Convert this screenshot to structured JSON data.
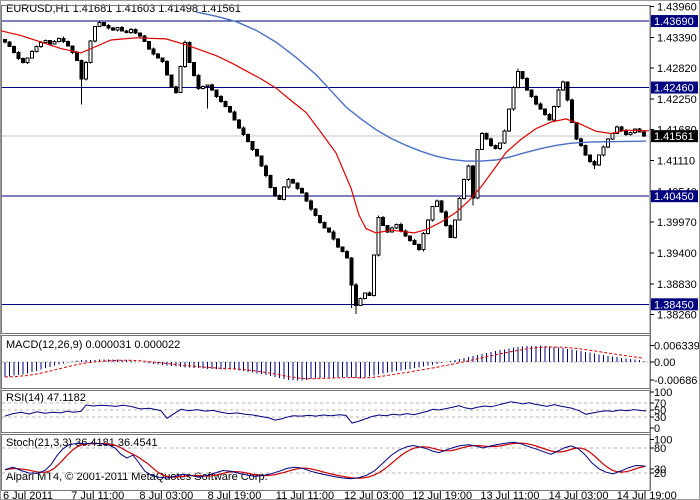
{
  "window": {
    "title": "EURUSD,H1  1.41681 1.41603 1.41498 1.41561"
  },
  "panels": {
    "macd": {
      "label": "MACD(12,26,9) 0.000031 0.000022",
      "axis_ticks": [
        [
          "0.006339",
          0.006339
        ],
        [
          "0.00",
          0
        ],
        [
          "-0.00686",
          -0.00686
        ]
      ]
    },
    "rsi": {
      "label": "RSI(14) 47.1182",
      "axis_ticks": [
        [
          "100",
          100
        ],
        [
          "70",
          70
        ],
        [
          "50",
          50
        ],
        [
          "30",
          30
        ],
        [
          "0",
          0
        ]
      ],
      "levels": [
        70,
        50,
        30
      ]
    },
    "stoch": {
      "label": "Stoch(21,3,3) 36.4181 36.4541",
      "axis_ticks": [
        [
          "100",
          100
        ],
        [
          "80",
          80
        ],
        [
          "30",
          30
        ],
        [
          "20",
          20
        ]
      ],
      "levels": [
        80,
        20
      ]
    }
  },
  "footer": {
    "copyright": "Alpari MT4, © 2001-2011 MetaQuotes Software Corp."
  },
  "time_axis": [
    "6 Jul 2011",
    "7 Jul 11:00",
    "8 Jul 03:00",
    "8 Jul 19:00",
    "11 Jul 11:00",
    "12 Jul 03:00",
    "12 Jul 19:00",
    "13 Jul 11:00",
    "14 Jul 03:00",
    "14 Jul 19:00"
  ],
  "price_axis": {
    "ticks": [
      "1.43960",
      "1.43390",
      "1.42820",
      "1.42250",
      "1.41680",
      "1.41110",
      "1.40540",
      "1.39970",
      "1.39400",
      "1.38830",
      "1.38260"
    ],
    "hlines": [
      "1.43690",
      "1.42460",
      "1.40450",
      "1.38450"
    ],
    "current": "1.41561"
  },
  "chart_data": {
    "type": "candlestick",
    "symbol": "EURUSD",
    "timeframe": "H1",
    "title": "EURUSD,H1  1.41681 1.41603 1.41498 1.41561",
    "ylim": [
      1.3807,
      1.4395
    ],
    "colors": {
      "navy": "#000080",
      "ma_red": "#e00000",
      "ma_blue": "#4a6fc4",
      "macd_bar": "#000080",
      "macd_signal": "#e00000",
      "rsi": "#000080",
      "stoch_k": "#000080",
      "stoch_d": "#cc0000",
      "level_dash": "#b4b4b4",
      "current_line": "#c6c6c6",
      "current_box": "#000000",
      "hline_box": "#000080",
      "border": "#777777",
      "text": "#000000",
      "bull": "#ffffff",
      "bear": "#000000"
    },
    "closes": [
      1.433,
      1.4322,
      1.4311,
      1.43,
      1.4292,
      1.4301,
      1.4313,
      1.4322,
      1.4329,
      1.4333,
      1.4327,
      1.4331,
      1.4337,
      1.4331,
      1.4323,
      1.4311,
      1.4296,
      1.4262,
      1.4292,
      1.4332,
      1.4359,
      1.4366,
      1.4361,
      1.4356,
      1.4352,
      1.4357,
      1.4351,
      1.4348,
      1.4353,
      1.4347,
      1.4341,
      1.4331,
      1.4317,
      1.4308,
      1.4301,
      1.4294,
      1.4269,
      1.4247,
      1.4237,
      1.4285,
      1.4329,
      1.4292,
      1.4268,
      1.4244,
      1.4248,
      1.4251,
      1.4241,
      1.4229,
      1.422,
      1.4211,
      1.4201,
      1.4186,
      1.4171,
      1.4159,
      1.4146,
      1.4131,
      1.4119,
      1.4101,
      1.4083,
      1.4061,
      1.4046,
      1.4039,
      1.4062,
      1.4076,
      1.4069,
      1.4059,
      1.4051,
      1.4036,
      1.4021,
      1.4009,
      1.3996,
      1.3986,
      1.3979,
      1.3966,
      1.3951,
      1.3943,
      1.3931,
      1.3881,
      1.3843,
      1.3856,
      1.3866,
      1.3861,
      1.3936,
      1.4006,
      1.3991,
      1.3979,
      1.3986,
      1.3993,
      1.3981,
      1.3971,
      1.3963,
      1.3956,
      1.3946,
      1.3976,
      1.4001,
      1.4026,
      1.4036,
      1.4016,
      1.3991,
      1.3969,
      1.4001,
      1.4041,
      1.4076,
      1.4101,
      1.4042,
      1.4131,
      1.4161,
      1.4151,
      1.4139,
      1.4133,
      1.4143,
      1.4166,
      1.4206,
      1.4246,
      1.4276,
      1.4263,
      1.4241,
      1.4229,
      1.4216,
      1.4206,
      1.4196,
      1.4186,
      1.4211,
      1.4241,
      1.4256,
      1.4223,
      1.4181,
      1.4151,
      1.4139,
      1.4121,
      1.4109,
      1.4103,
      1.4121,
      1.4136,
      1.4151,
      1.4161,
      1.4173,
      1.4166,
      1.4159,
      1.4163,
      1.4169,
      1.4164,
      1.41561
    ],
    "wick_overrides": {
      "17": {
        "lo": 1.4215
      },
      "21": {
        "hi": 1.4368
      },
      "40": {
        "hi": 1.4333
      },
      "45": {
        "lo": 1.4207
      },
      "77": {
        "lo": 1.3838
      },
      "78": {
        "lo": 1.3827
      },
      "104": {
        "lo": 1.4028
      },
      "114": {
        "hi": 1.4281
      },
      "124": {
        "hi": 1.4259
      },
      "131": {
        "lo": 1.4095
      }
    },
    "ma_blue": [
      [
        195,
        1.4386
      ],
      [
        215,
        1.4378
      ],
      [
        235,
        1.4368
      ],
      [
        255,
        1.4352
      ],
      [
        275,
        1.433
      ],
      [
        295,
        1.4302
      ],
      [
        315,
        1.427
      ],
      [
        330,
        1.424
      ],
      [
        345,
        1.421
      ],
      [
        360,
        1.4188
      ],
      [
        375,
        1.4168
      ],
      [
        390,
        1.4152
      ],
      [
        405,
        1.4139
      ],
      [
        420,
        1.4128
      ],
      [
        435,
        1.4119
      ],
      [
        450,
        1.4113
      ],
      [
        465,
        1.411
      ],
      [
        480,
        1.411
      ],
      [
        495,
        1.4112
      ],
      [
        510,
        1.4118
      ],
      [
        525,
        1.4126
      ],
      [
        540,
        1.4133
      ],
      [
        555,
        1.4139
      ],
      [
        570,
        1.4143
      ],
      [
        590,
        1.4145
      ],
      [
        615,
        1.4146
      ],
      [
        645,
        1.4147
      ]
    ],
    "ma_red": [
      [
        0,
        1.4351
      ],
      [
        20,
        1.4342
      ],
      [
        40,
        1.433
      ],
      [
        60,
        1.4318
      ],
      [
        80,
        1.431
      ],
      [
        95,
        1.4322
      ],
      [
        110,
        1.4334
      ],
      [
        135,
        1.4338
      ],
      [
        165,
        1.4336
      ],
      [
        185,
        1.4325
      ],
      [
        200,
        1.4315
      ],
      [
        215,
        1.4305
      ],
      [
        230,
        1.4292
      ],
      [
        245,
        1.4277
      ],
      [
        260,
        1.4262
      ],
      [
        275,
        1.4245
      ],
      [
        290,
        1.4222
      ],
      [
        305,
        1.42
      ],
      [
        320,
        1.4163
      ],
      [
        335,
        1.4125
      ],
      [
        350,
        1.406
      ],
      [
        358,
        1.401
      ],
      [
        365,
        1.3985
      ],
      [
        375,
        1.3977
      ],
      [
        390,
        1.3982
      ],
      [
        400,
        1.398
      ],
      [
        413,
        1.3977
      ],
      [
        425,
        1.3983
      ],
      [
        440,
        1.3997
      ],
      [
        455,
        1.4015
      ],
      [
        467,
        1.4035
      ],
      [
        480,
        1.4062
      ],
      [
        495,
        1.41
      ],
      [
        505,
        1.4126
      ],
      [
        520,
        1.415
      ],
      [
        535,
        1.417
      ],
      [
        550,
        1.4182
      ],
      [
        565,
        1.4188
      ],
      [
        580,
        1.4178
      ],
      [
        595,
        1.4165
      ],
      [
        610,
        1.4161
      ],
      [
        625,
        1.4167
      ],
      [
        648,
        1.4166
      ]
    ],
    "macd_line": [
      [
        0,
        -0.006
      ],
      [
        25,
        -0.0046
      ],
      [
        55,
        -0.0012
      ],
      [
        75,
        0.0006
      ],
      [
        105,
        0.001
      ],
      [
        125,
        0.0008
      ],
      [
        150,
        -0.0006
      ],
      [
        175,
        -0.0018
      ],
      [
        205,
        -0.0026
      ],
      [
        235,
        -0.003
      ],
      [
        262,
        -0.0048
      ],
      [
        285,
        -0.0068
      ],
      [
        300,
        -0.0072
      ],
      [
        320,
        -0.006
      ],
      [
        345,
        -0.0058
      ],
      [
        360,
        -0.0064
      ],
      [
        385,
        -0.0042
      ],
      [
        410,
        -0.0026
      ],
      [
        430,
        -0.0012
      ],
      [
        450,
        0.0004
      ],
      [
        470,
        0.0022
      ],
      [
        495,
        0.0043
      ],
      [
        520,
        0.006
      ],
      [
        540,
        0.0063
      ],
      [
        560,
        0.0055
      ],
      [
        580,
        0.0042
      ],
      [
        600,
        0.0028
      ],
      [
        620,
        0.0016
      ],
      [
        638,
        0.0008
      ],
      [
        645,
        0.0003
      ]
    ],
    "rsi_line": [
      [
        4,
        33
      ],
      [
        12,
        40
      ],
      [
        20,
        44
      ],
      [
        28,
        39
      ],
      [
        36,
        45
      ],
      [
        44,
        41
      ],
      [
        52,
        44
      ],
      [
        60,
        42
      ],
      [
        66,
        47
      ],
      [
        72,
        44
      ],
      [
        80,
        46
      ],
      [
        85,
        64
      ],
      [
        92,
        61
      ],
      [
        100,
        63
      ],
      [
        108,
        62
      ],
      [
        115,
        60
      ],
      [
        122,
        63
      ],
      [
        130,
        60
      ],
      [
        139,
        53
      ],
      [
        148,
        55
      ],
      [
        155,
        51
      ],
      [
        160,
        48
      ],
      [
        166,
        27
      ],
      [
        172,
        38
      ],
      [
        180,
        52
      ],
      [
        188,
        48
      ],
      [
        196,
        51
      ],
      [
        204,
        47
      ],
      [
        212,
        49
      ],
      [
        220,
        44
      ],
      [
        228,
        40
      ],
      [
        236,
        42
      ],
      [
        244,
        38
      ],
      [
        252,
        36
      ],
      [
        260,
        32
      ],
      [
        268,
        28
      ],
      [
        274,
        22
      ],
      [
        280,
        25
      ],
      [
        286,
        30
      ],
      [
        292,
        34
      ],
      [
        300,
        33
      ],
      [
        308,
        35
      ],
      [
        315,
        33
      ],
      [
        322,
        36
      ],
      [
        330,
        34
      ],
      [
        338,
        37
      ],
      [
        345,
        35
      ],
      [
        351,
        14
      ],
      [
        357,
        18
      ],
      [
        364,
        25
      ],
      [
        371,
        32
      ],
      [
        378,
        36
      ],
      [
        385,
        34
      ],
      [
        392,
        38
      ],
      [
        399,
        36
      ],
      [
        406,
        40
      ],
      [
        413,
        37
      ],
      [
        420,
        42
      ],
      [
        427,
        47
      ],
      [
        432,
        52
      ],
      [
        438,
        50
      ],
      [
        445,
        54
      ],
      [
        452,
        58
      ],
      [
        458,
        62
      ],
      [
        464,
        56
      ],
      [
        470,
        53
      ],
      [
        477,
        58
      ],
      [
        484,
        61
      ],
      [
        490,
        59
      ],
      [
        496,
        63
      ],
      [
        503,
        68
      ],
      [
        510,
        73
      ],
      [
        516,
        70
      ],
      [
        522,
        67
      ],
      [
        528,
        70
      ],
      [
        534,
        66
      ],
      [
        540,
        63
      ],
      [
        546,
        60
      ],
      [
        553,
        65
      ],
      [
        559,
        61
      ],
      [
        565,
        58
      ],
      [
        571,
        55
      ],
      [
        578,
        48
      ],
      [
        585,
        38
      ],
      [
        592,
        42
      ],
      [
        598,
        45
      ],
      [
        605,
        48
      ],
      [
        612,
        46
      ],
      [
        619,
        50
      ],
      [
        626,
        48
      ],
      [
        633,
        51
      ],
      [
        639,
        49
      ],
      [
        645,
        47.1
      ]
    ],
    "stoch_k": [
      [
        4,
        28
      ],
      [
        12,
        34
      ],
      [
        20,
        26
      ],
      [
        28,
        20
      ],
      [
        36,
        19
      ],
      [
        44,
        26
      ],
      [
        50,
        40
      ],
      [
        56,
        62
      ],
      [
        62,
        78
      ],
      [
        68,
        88
      ],
      [
        76,
        91
      ],
      [
        84,
        90
      ],
      [
        92,
        92
      ],
      [
        100,
        90
      ],
      [
        108,
        87
      ],
      [
        114,
        80
      ],
      [
        120,
        65
      ],
      [
        126,
        56
      ],
      [
        132,
        63
      ],
      [
        138,
        44
      ],
      [
        144,
        24
      ],
      [
        150,
        15
      ],
      [
        158,
        10
      ],
      [
        166,
        8
      ],
      [
        174,
        12
      ],
      [
        182,
        17
      ],
      [
        190,
        14
      ],
      [
        198,
        10
      ],
      [
        206,
        14
      ],
      [
        214,
        20
      ],
      [
        222,
        26
      ],
      [
        230,
        24
      ],
      [
        238,
        19
      ],
      [
        246,
        15
      ],
      [
        254,
        12
      ],
      [
        262,
        14
      ],
      [
        270,
        18
      ],
      [
        278,
        24
      ],
      [
        286,
        31
      ],
      [
        294,
        34
      ],
      [
        302,
        31
      ],
      [
        310,
        24
      ],
      [
        318,
        19
      ],
      [
        326,
        15
      ],
      [
        334,
        11
      ],
      [
        342,
        8
      ],
      [
        350,
        6
      ],
      [
        358,
        9
      ],
      [
        366,
        15
      ],
      [
        374,
        26
      ],
      [
        382,
        44
      ],
      [
        390,
        62
      ],
      [
        398,
        75
      ],
      [
        406,
        83
      ],
      [
        412,
        86
      ],
      [
        418,
        83
      ],
      [
        426,
        78
      ],
      [
        432,
        72
      ],
      [
        438,
        69
      ],
      [
        446,
        76
      ],
      [
        452,
        81
      ],
      [
        460,
        86
      ],
      [
        468,
        88
      ],
      [
        476,
        84
      ],
      [
        482,
        80
      ],
      [
        490,
        85
      ],
      [
        498,
        89
      ],
      [
        506,
        92
      ],
      [
        514,
        94
      ],
      [
        520,
        90
      ],
      [
        528,
        83
      ],
      [
        536,
        77
      ],
      [
        544,
        70
      ],
      [
        550,
        65
      ],
      [
        557,
        73
      ],
      [
        564,
        81
      ],
      [
        570,
        85
      ],
      [
        577,
        79
      ],
      [
        584,
        64
      ],
      [
        591,
        44
      ],
      [
        598,
        30
      ],
      [
        605,
        22
      ],
      [
        612,
        18
      ],
      [
        620,
        25
      ],
      [
        628,
        33
      ],
      [
        635,
        38
      ],
      [
        641,
        37
      ],
      [
        645,
        36.4
      ]
    ]
  }
}
